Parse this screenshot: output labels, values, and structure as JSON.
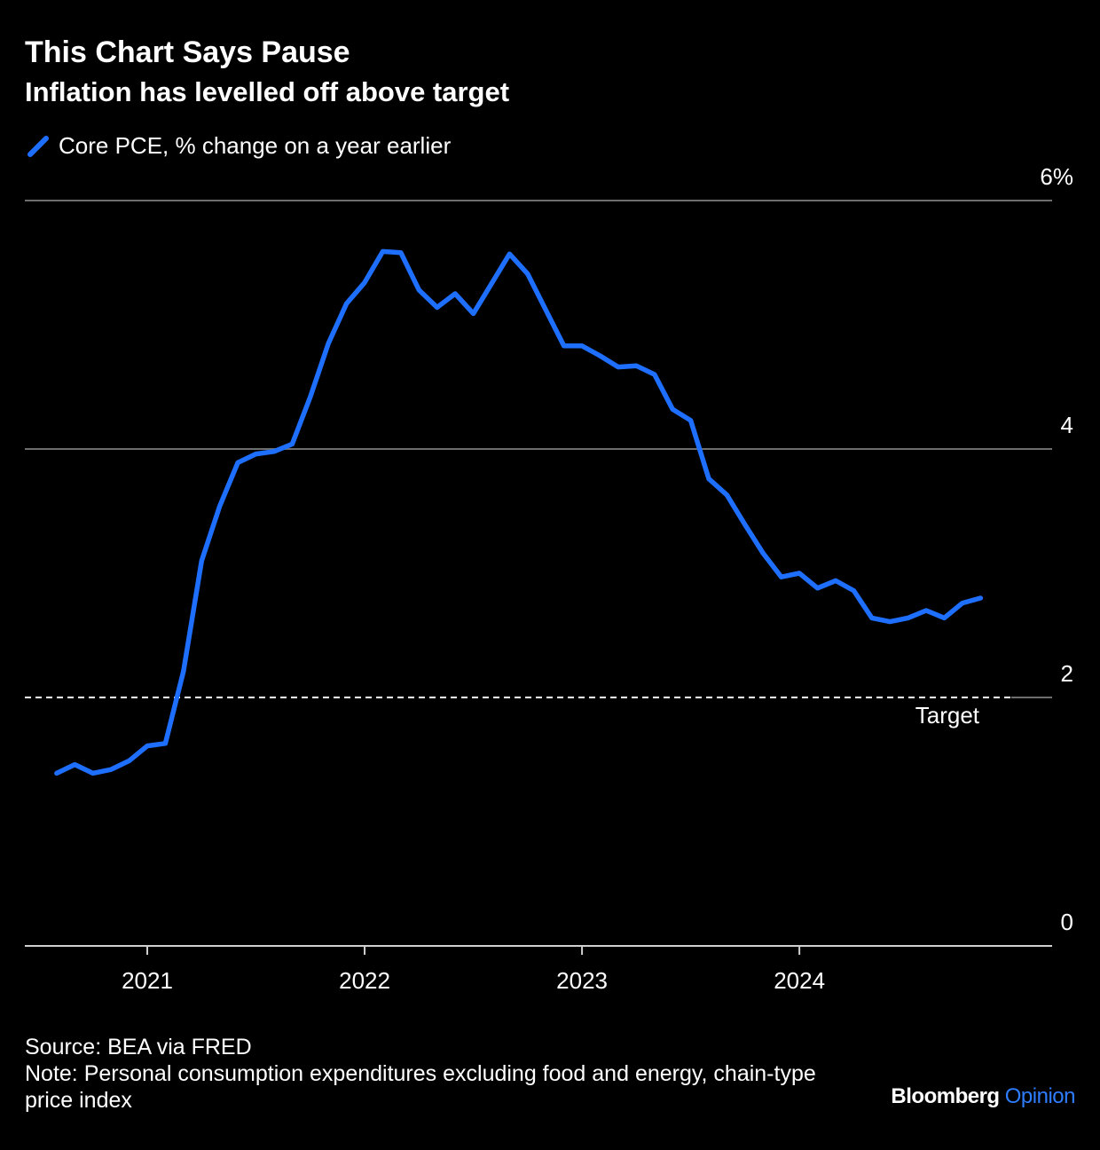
{
  "header": {
    "title": "This Chart Says Pause",
    "subtitle": "Inflation has levelled off above target"
  },
  "footer": {
    "source": "Source: BEA via FRED",
    "note": "Note: Personal consumption expenditures excluding food and energy, chain-type price index"
  },
  "brand": {
    "name": "Bloomberg",
    "accent": "Opinion",
    "accent_color": "#2f7dff"
  },
  "chart_data": {
    "type": "line",
    "title": "This Chart Says Pause",
    "subtitle": "Inflation has levelled off above target",
    "ylim": [
      0,
      6
    ],
    "y_ticks": [
      {
        "value": 0,
        "label": "0"
      },
      {
        "value": 2,
        "label": "2"
      },
      {
        "value": 4,
        "label": "4"
      },
      {
        "value": 6,
        "label": "6%"
      }
    ],
    "x_ticks": [
      "2021",
      "2022",
      "2023",
      "2024"
    ],
    "grid": true,
    "legend": "top-left",
    "target": {
      "value": 2,
      "label": "Target"
    },
    "series": [
      {
        "name": "Core PCE, % change on a year earlier",
        "color": "#1f6fff",
        "x": [
          "2020-08",
          "2020-09",
          "2020-10",
          "2020-11",
          "2020-12",
          "2021-01",
          "2021-02",
          "2021-03",
          "2021-04",
          "2021-05",
          "2021-06",
          "2021-07",
          "2021-08",
          "2021-09",
          "2021-10",
          "2021-11",
          "2021-12",
          "2022-01",
          "2022-02",
          "2022-03",
          "2022-04",
          "2022-05",
          "2022-06",
          "2022-07",
          "2022-08",
          "2022-09",
          "2022-10",
          "2022-11",
          "2022-12",
          "2023-01",
          "2023-02",
          "2023-03",
          "2023-04",
          "2023-05",
          "2023-06",
          "2023-07",
          "2023-08",
          "2023-09",
          "2023-10",
          "2023-11",
          "2023-12",
          "2024-01",
          "2024-02",
          "2024-03",
          "2024-04",
          "2024-05",
          "2024-06",
          "2024-07",
          "2024-08",
          "2024-09",
          "2024-10",
          "2024-11"
        ],
        "values": [
          1.39,
          1.46,
          1.39,
          1.42,
          1.49,
          1.61,
          1.63,
          2.21,
          3.1,
          3.54,
          3.89,
          3.96,
          3.98,
          4.04,
          4.42,
          4.85,
          5.17,
          5.34,
          5.59,
          5.58,
          5.28,
          5.14,
          5.25,
          5.09,
          5.33,
          5.57,
          5.41,
          5.12,
          4.83,
          4.83,
          4.75,
          4.66,
          4.67,
          4.6,
          4.32,
          4.23,
          3.76,
          3.63,
          3.39,
          3.16,
          2.97,
          3.0,
          2.88,
          2.94,
          2.86,
          2.64,
          2.61,
          2.64,
          2.7,
          2.64,
          2.76,
          2.8
        ]
      }
    ]
  }
}
